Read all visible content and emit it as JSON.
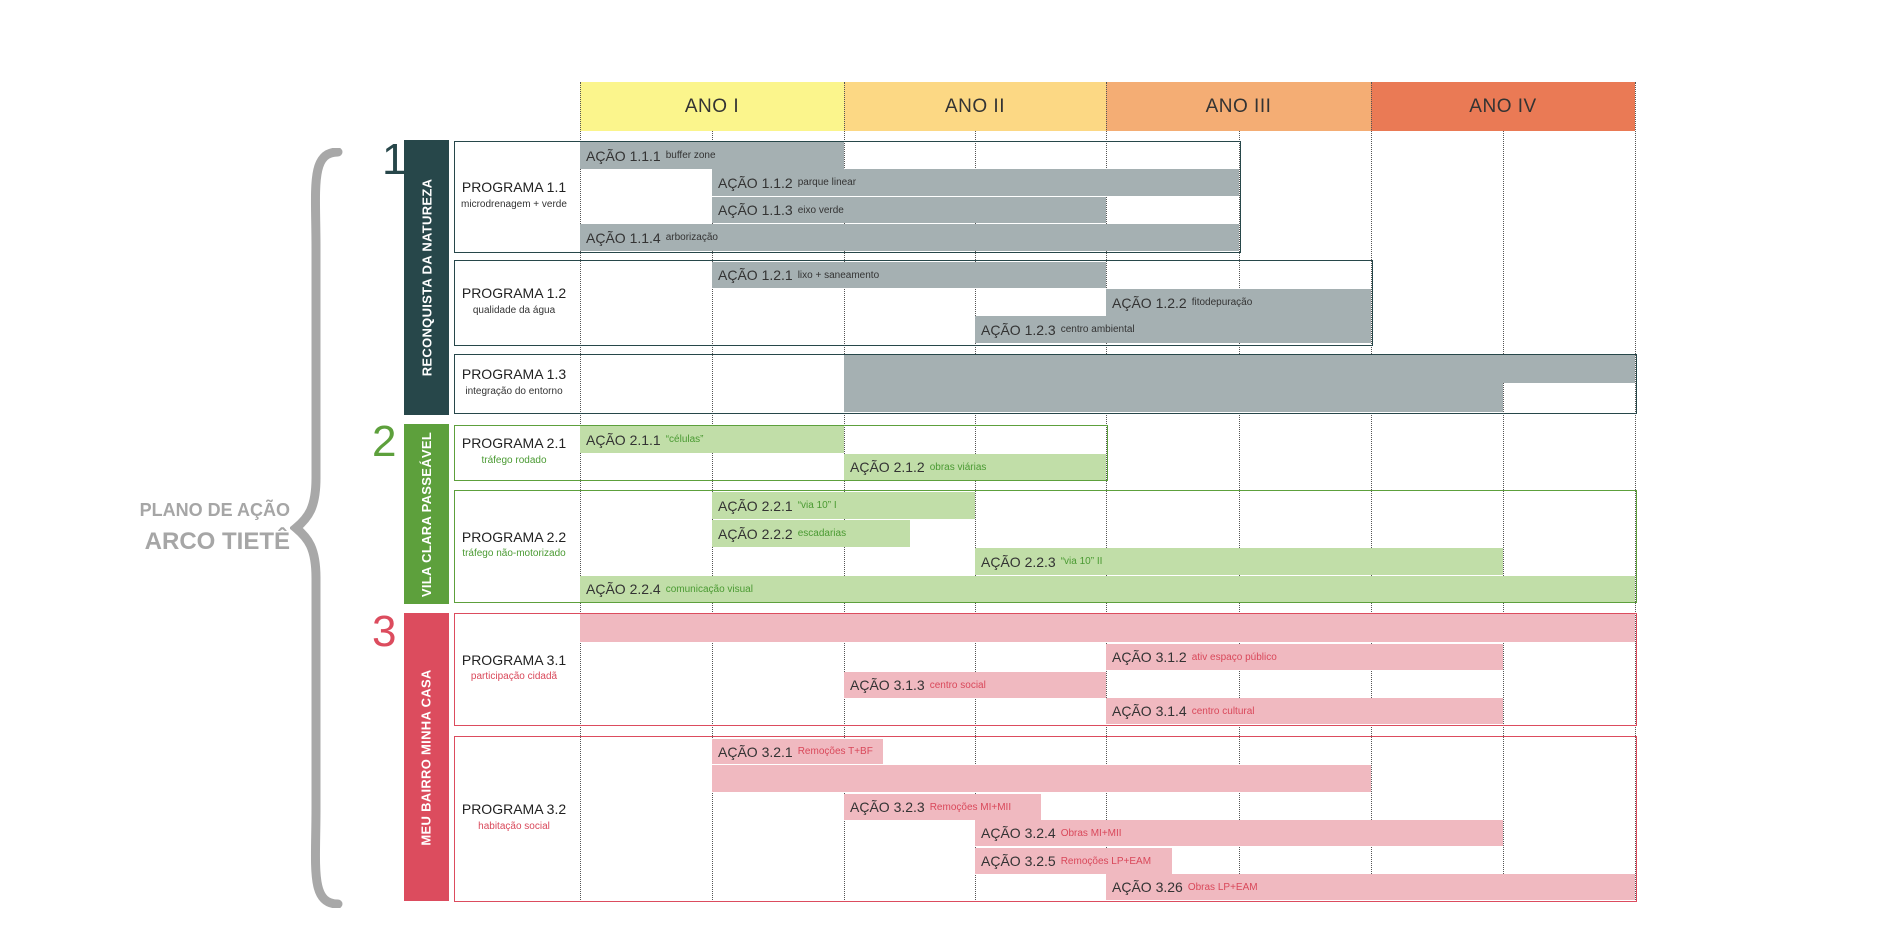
{
  "title": {
    "line1": "PLANO DE AÇÃO",
    "line2": "ARCO TIETÊ"
  },
  "years": [
    {
      "label": "ANO I",
      "color": "#fbf58c"
    },
    {
      "label": "ANO II",
      "color": "#fcd884"
    },
    {
      "label": "ANO III",
      "color": "#f4ad74"
    },
    {
      "label": "ANO IV",
      "color": "#ea7a55"
    }
  ],
  "groups": [
    {
      "number": "1",
      "label": "RECONQUISTA DA NATUREZA",
      "color": "#27474a",
      "number_color": "#27474a",
      "bar_color": "#a5b0b2",
      "sub_color": "#333333"
    },
    {
      "number": "2",
      "label": "VILA CLARA PASSEÁVEL",
      "color": "#5da03c",
      "number_color": "#5da03c",
      "bar_color": "#c1dea8",
      "sub_color": "#4a9a32"
    },
    {
      "number": "3",
      "label": "MEU BAIRRO MINHA CASA",
      "color": "#dc4c5e",
      "number_color": "#dc4c5e",
      "bar_color": "#f0b9c0",
      "sub_color": "#d9485a"
    }
  ],
  "programs": [
    {
      "name": "PROGRAMA 1.1",
      "sub": "microdrenagem + verde"
    },
    {
      "name": "PROGRAMA 1.2",
      "sub": "qualidade da água"
    },
    {
      "name": "PROGRAMA 1.3",
      "sub": "integração do entorno"
    },
    {
      "name": "PROGRAMA 2.1",
      "sub": "tráfego rodado"
    },
    {
      "name": "PROGRAMA 2.2",
      "sub": "tráfego não-motorizado"
    },
    {
      "name": "PROGRAMA 3.1",
      "sub": "participação cidadã"
    },
    {
      "name": "PROGRAMA 3.2",
      "sub": "habitação social"
    }
  ],
  "actions": [
    {
      "group": 0,
      "name": "AÇÃO 1.1.1",
      "sub": "buffer zone",
      "start": 0.0,
      "end": 1.0
    },
    {
      "group": 0,
      "name": "AÇÃO 1.1.2",
      "sub": "parque linear",
      "start": 0.5,
      "end": 2.5
    },
    {
      "group": 0,
      "name": "AÇÃO 1.1.3",
      "sub": "eixo verde",
      "start": 0.5,
      "end": 2.0
    },
    {
      "group": 0,
      "name": "AÇÃO 1.1.4",
      "sub": "arborização",
      "start": 0.0,
      "end": 2.5
    },
    {
      "group": 0,
      "name": "AÇÃO 1.2.1",
      "sub": "lixo + saneamento",
      "start": 0.5,
      "end": 2.0
    },
    {
      "group": 0,
      "name": "AÇÃO 1.2.2",
      "sub": "fitodepuração",
      "start": 2.0,
      "end": 3.0
    },
    {
      "group": 0,
      "name": "AÇÃO 1.2.3",
      "sub": "centro ambiental",
      "start": 1.5,
      "end": 3.0
    },
    {
      "group": 0,
      "name": "",
      "sub": "",
      "start": 1.0,
      "end": 4.0
    },
    {
      "group": 0,
      "name": "",
      "sub": "",
      "start": 1.0,
      "end": 3.5
    },
    {
      "group": 1,
      "name": "AÇÃO 2.1.1",
      "sub": "“células”",
      "start": 0.0,
      "end": 1.0
    },
    {
      "group": 1,
      "name": "AÇÃO 2.1.2",
      "sub": "obras viárias",
      "start": 1.0,
      "end": 2.0
    },
    {
      "group": 1,
      "name": "AÇÃO 2.2.1",
      "sub": "“via 10” I",
      "start": 0.5,
      "end": 1.5
    },
    {
      "group": 1,
      "name": "AÇÃO 2.2.2",
      "sub": "escadarias",
      "start": 0.5,
      "end": 1.25
    },
    {
      "group": 1,
      "name": "AÇÃO 2.2.3",
      "sub": "“via 10” II",
      "start": 1.5,
      "end": 3.5
    },
    {
      "group": 1,
      "name": "AÇÃO 2.2.4",
      "sub": "comunicação visual",
      "start": 0.0,
      "end": 4.0
    },
    {
      "group": 2,
      "name": "",
      "sub": "",
      "start": 0.0,
      "end": 4.0
    },
    {
      "group": 2,
      "name": "AÇÃO 3.1.2",
      "sub": "ativ espaço público",
      "start": 2.0,
      "end": 3.5
    },
    {
      "group": 2,
      "name": "AÇÃO 3.1.3",
      "sub": "centro social",
      "start": 1.0,
      "end": 2.0
    },
    {
      "group": 2,
      "name": "AÇÃO 3.1.4",
      "sub": "centro cultural",
      "start": 2.0,
      "end": 3.5
    },
    {
      "group": 2,
      "name": "AÇÃO 3.2.1",
      "sub": "Remoções T+BF",
      "start": 0.5,
      "end": 1.15
    },
    {
      "group": 2,
      "name": "",
      "sub": "",
      "start": 0.5,
      "end": 3.0
    },
    {
      "group": 2,
      "name": "AÇÃO 3.2.3",
      "sub": "Remoções MI+MII",
      "start": 1.0,
      "end": 1.75
    },
    {
      "group": 2,
      "name": "AÇÃO 3.2.4",
      "sub": "Obras MI+MII",
      "start": 1.5,
      "end": 3.5
    },
    {
      "group": 2,
      "name": "AÇÃO 3.2.5",
      "sub": "Remoções LP+EAM",
      "start": 1.5,
      "end": 2.25
    },
    {
      "group": 2,
      "name": "AÇÃO 3.26",
      "sub": "Obras LP+EAM",
      "start": 2.0,
      "end": 4.0
    }
  ]
}
